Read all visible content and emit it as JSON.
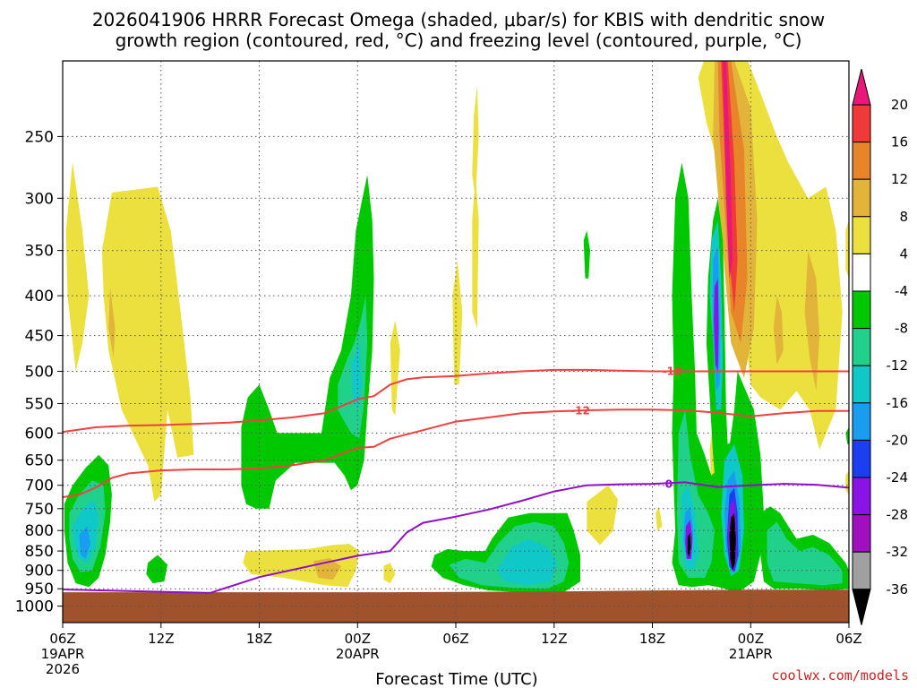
{
  "chart_data": {
    "type": "heatmap",
    "title_line1": "2026041906 HRRR Forecast Omega (shaded, μbar/s) for KBIS with dendritic snow",
    "title_line2": "growth region (contoured, red, °C) and freezing level (contoured, purple, °C)",
    "xlabel": "Forecast Time (UTC)",
    "credit": "coolwx.com/models",
    "x_range_hours": [
      0,
      48
    ],
    "x_ticks": [
      {
        "hour": 0,
        "label": "06Z",
        "date": "19APR",
        "year": "2026"
      },
      {
        "hour": 6,
        "label": "12Z",
        "date": "",
        "year": ""
      },
      {
        "hour": 12,
        "label": "18Z",
        "date": "",
        "year": ""
      },
      {
        "hour": 18,
        "label": "00Z",
        "date": "20APR",
        "year": ""
      },
      {
        "hour": 24,
        "label": "06Z",
        "date": "",
        "year": ""
      },
      {
        "hour": 30,
        "label": "12Z",
        "date": "",
        "year": ""
      },
      {
        "hour": 36,
        "label": "18Z",
        "date": "",
        "year": ""
      },
      {
        "hour": 42,
        "label": "00Z",
        "date": "21APR",
        "year": ""
      },
      {
        "hour": 48,
        "label": "06Z",
        "date": "",
        "year": ""
      }
    ],
    "y_range_hpa": [
      1050,
      200
    ],
    "y_ticks": [
      250,
      300,
      350,
      400,
      450,
      500,
      550,
      600,
      650,
      700,
      750,
      800,
      850,
      900,
      950,
      1000
    ],
    "colorbar_levels": [
      20,
      16,
      12,
      8,
      4,
      -4,
      -8,
      -12,
      -16,
      -20,
      -24,
      -28,
      -32,
      -36
    ],
    "colors": {
      "c_pos20": "#e8187a",
      "c_pos16": "#f03a3a",
      "c_pos12": "#e8842a",
      "c_pos8": "#e2b43a",
      "c_pos4": "#ece03e",
      "c_neutral": "#ffffff",
      "c_neg4": "#00c800",
      "c_neg8": "#21d08a",
      "c_neg12": "#10c8c8",
      "c_neg16": "#1a9cf0",
      "c_neg20": "#1a3ef0",
      "c_neg24": "#8a14e6",
      "c_neg28": "#a010c0",
      "c_neg32": "#a0a0a0",
      "c_neg36": "#000000",
      "ground": "#a0522d",
      "red_contour": "#f04040",
      "purple_contour": "#9010c8"
    },
    "contours": [
      {
        "name": "-18 C",
        "label": "-18",
        "color": "red",
        "points": [
          [
            0,
            598
          ],
          [
            2,
            590
          ],
          [
            4,
            587
          ],
          [
            6,
            586
          ],
          [
            8,
            584
          ],
          [
            10,
            582
          ],
          [
            12,
            578
          ],
          [
            14,
            573
          ],
          [
            16,
            566
          ],
          [
            18,
            543
          ],
          [
            19,
            538
          ],
          [
            20,
            520
          ],
          [
            21,
            512
          ],
          [
            22,
            509
          ],
          [
            24,
            507
          ],
          [
            26,
            503
          ],
          [
            28,
            500
          ],
          [
            30,
            498
          ],
          [
            32,
            498
          ],
          [
            34,
            499
          ],
          [
            36,
            500
          ],
          [
            38,
            500
          ],
          [
            40,
            500
          ],
          [
            42,
            500
          ],
          [
            44,
            500
          ],
          [
            46,
            500
          ],
          [
            48,
            500
          ]
        ]
      },
      {
        "name": "-12 C",
        "label": "-12",
        "color": "red",
        "points": [
          [
            0,
            725
          ],
          [
            1,
            720
          ],
          [
            2,
            705
          ],
          [
            3,
            685
          ],
          [
            4,
            676
          ],
          [
            6,
            670
          ],
          [
            8,
            668
          ],
          [
            10,
            668
          ],
          [
            12,
            666
          ],
          [
            14,
            660
          ],
          [
            16,
            650
          ],
          [
            18,
            627
          ],
          [
            19,
            625
          ],
          [
            20,
            610
          ],
          [
            22,
            595
          ],
          [
            24,
            580
          ],
          [
            26,
            573
          ],
          [
            28,
            566
          ],
          [
            30,
            563
          ],
          [
            32,
            561
          ],
          [
            34,
            560
          ],
          [
            36,
            560
          ],
          [
            38,
            561
          ],
          [
            40,
            565
          ],
          [
            42,
            571
          ],
          [
            44,
            566
          ],
          [
            46,
            562
          ],
          [
            48,
            562
          ]
        ]
      },
      {
        "name": "0 C",
        "label": "0",
        "color": "purple",
        "points": [
          [
            0,
            952
          ],
          [
            9,
            962
          ],
          [
            12,
            918
          ],
          [
            16,
            880
          ],
          [
            18,
            862
          ],
          [
            20,
            850
          ],
          [
            21,
            805
          ],
          [
            22,
            782
          ],
          [
            24,
            768
          ],
          [
            26,
            752
          ],
          [
            28,
            733
          ],
          [
            30,
            713
          ],
          [
            32,
            700
          ],
          [
            34,
            698
          ],
          [
            36,
            697
          ],
          [
            38,
            694
          ],
          [
            40,
            704
          ],
          [
            42,
            700
          ],
          [
            44,
            697
          ],
          [
            46,
            699
          ],
          [
            48,
            705
          ]
        ]
      }
    ],
    "ground_level_hpa": 960
  }
}
